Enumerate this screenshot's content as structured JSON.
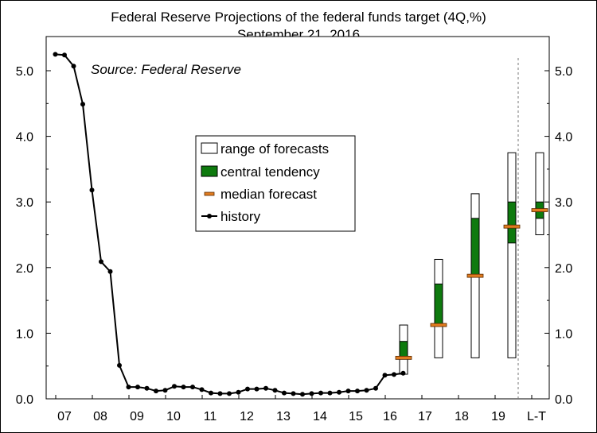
{
  "chart_data": {
    "type": "line",
    "title": "Federal Reserve Projections of the federal funds target (4Q,%)",
    "subtitle": "September 21, 2016",
    "annotation": "Source: Federal Reserve",
    "ylim": [
      0,
      5.5
    ],
    "y_ticks": [
      "0.0",
      "1.0",
      "2.0",
      "3.0",
      "4.0",
      "5.0"
    ],
    "x_tick_labels": [
      "07",
      "08",
      "09",
      "10",
      "11",
      "12",
      "13",
      "14",
      "15",
      "16",
      "17",
      "18",
      "19",
      "L-T"
    ],
    "legend_position": "center-left",
    "legend": {
      "range": "range of forecasts",
      "central": "central tendency",
      "median": "median forecast",
      "history": "history"
    },
    "colors": {
      "history": "#000000",
      "central": "#0e7a0e",
      "median": "#e07b1f",
      "range": "#ffffff"
    },
    "history": {
      "name": "history",
      "x": [
        2006.75,
        2007.0,
        2007.25,
        2007.5,
        2007.75,
        2008.0,
        2008.25,
        2008.5,
        2008.75,
        2009.0,
        2009.25,
        2009.5,
        2009.75,
        2010.0,
        2010.25,
        2010.5,
        2010.75,
        2011.0,
        2011.25,
        2011.5,
        2011.75,
        2012.0,
        2012.25,
        2012.5,
        2012.75,
        2013.0,
        2013.25,
        2013.5,
        2013.75,
        2014.0,
        2014.25,
        2014.5,
        2014.75,
        2015.0,
        2015.25,
        2015.5,
        2015.75,
        2016.0,
        2016.25
      ],
      "y": [
        5.25,
        5.24,
        5.07,
        4.49,
        3.18,
        2.09,
        1.94,
        0.51,
        0.18,
        0.18,
        0.16,
        0.12,
        0.13,
        0.19,
        0.18,
        0.18,
        0.14,
        0.09,
        0.08,
        0.08,
        0.1,
        0.15,
        0.15,
        0.16,
        0.13,
        0.09,
        0.08,
        0.07,
        0.08,
        0.09,
        0.09,
        0.1,
        0.12,
        0.12,
        0.13,
        0.16,
        0.36,
        0.37,
        0.39
      ]
    },
    "projections": [
      {
        "label": "16",
        "range": [
          0.375,
          1.125
        ],
        "central": [
          0.625,
          0.875
        ],
        "median": 0.625
      },
      {
        "label": "17",
        "range": [
          0.625,
          2.125
        ],
        "central": [
          1.125,
          1.75
        ],
        "median": 1.125
      },
      {
        "label": "18",
        "range": [
          0.625,
          3.125
        ],
        "central": [
          1.875,
          2.75
        ],
        "median": 1.875
      },
      {
        "label": "19",
        "range": [
          0.625,
          3.75
        ],
        "central": [
          2.375,
          3.0
        ],
        "median": 2.625
      },
      {
        "label": "L-T",
        "range": [
          2.5,
          3.75
        ],
        "central": [
          2.75,
          3.0
        ],
        "median": 2.875
      }
    ]
  }
}
